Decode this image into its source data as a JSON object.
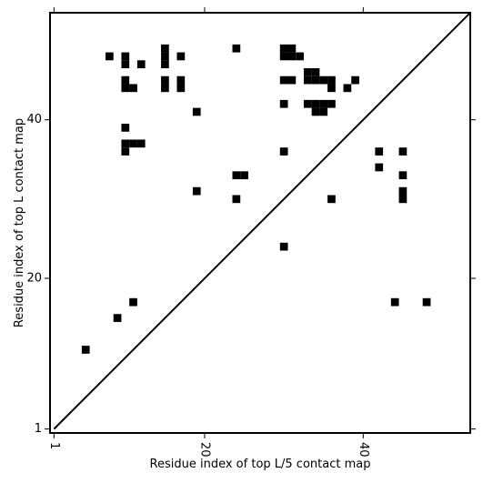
{
  "chart_data": {
    "type": "scatter",
    "marker": "square",
    "xlabel": "Residue index of top L/5 contact map",
    "ylabel": "Residue index of top L contact map",
    "x": [
      8,
      10,
      10,
      12,
      15,
      15,
      15,
      17,
      24,
      30,
      31,
      30,
      31,
      32,
      10,
      10,
      11,
      15,
      15,
      17,
      17,
      30,
      31,
      33,
      34,
      33,
      34,
      35,
      36,
      36,
      38,
      39,
      19,
      30,
      33,
      34,
      35,
      36,
      34,
      35,
      10,
      10,
      11,
      12,
      10,
      30,
      42,
      45,
      42,
      24,
      25,
      45,
      19,
      45,
      45,
      24,
      36,
      30,
      11,
      9,
      5,
      44,
      48
    ],
    "values": [
      48,
      48,
      47,
      47,
      49,
      48,
      47,
      48,
      49,
      49,
      49,
      48,
      48,
      48,
      45,
      44,
      44,
      45,
      44,
      45,
      44,
      45,
      45,
      46,
      46,
      45,
      45,
      45,
      45,
      44,
      44,
      45,
      41,
      42,
      42,
      42,
      42,
      42,
      41,
      41,
      39,
      37,
      37,
      37,
      36,
      36,
      36,
      36,
      34,
      33,
      33,
      33,
      31,
      31,
      30,
      30,
      30,
      24,
      17,
      15,
      11,
      17,
      17
    ],
    "color": "#000000",
    "xlim": [
      0.5,
      53.5
    ],
    "ylim": [
      0.5,
      53.5
    ],
    "xticks": [
      1,
      20,
      40
    ],
    "yticks": [
      1,
      20,
      40
    ]
  }
}
